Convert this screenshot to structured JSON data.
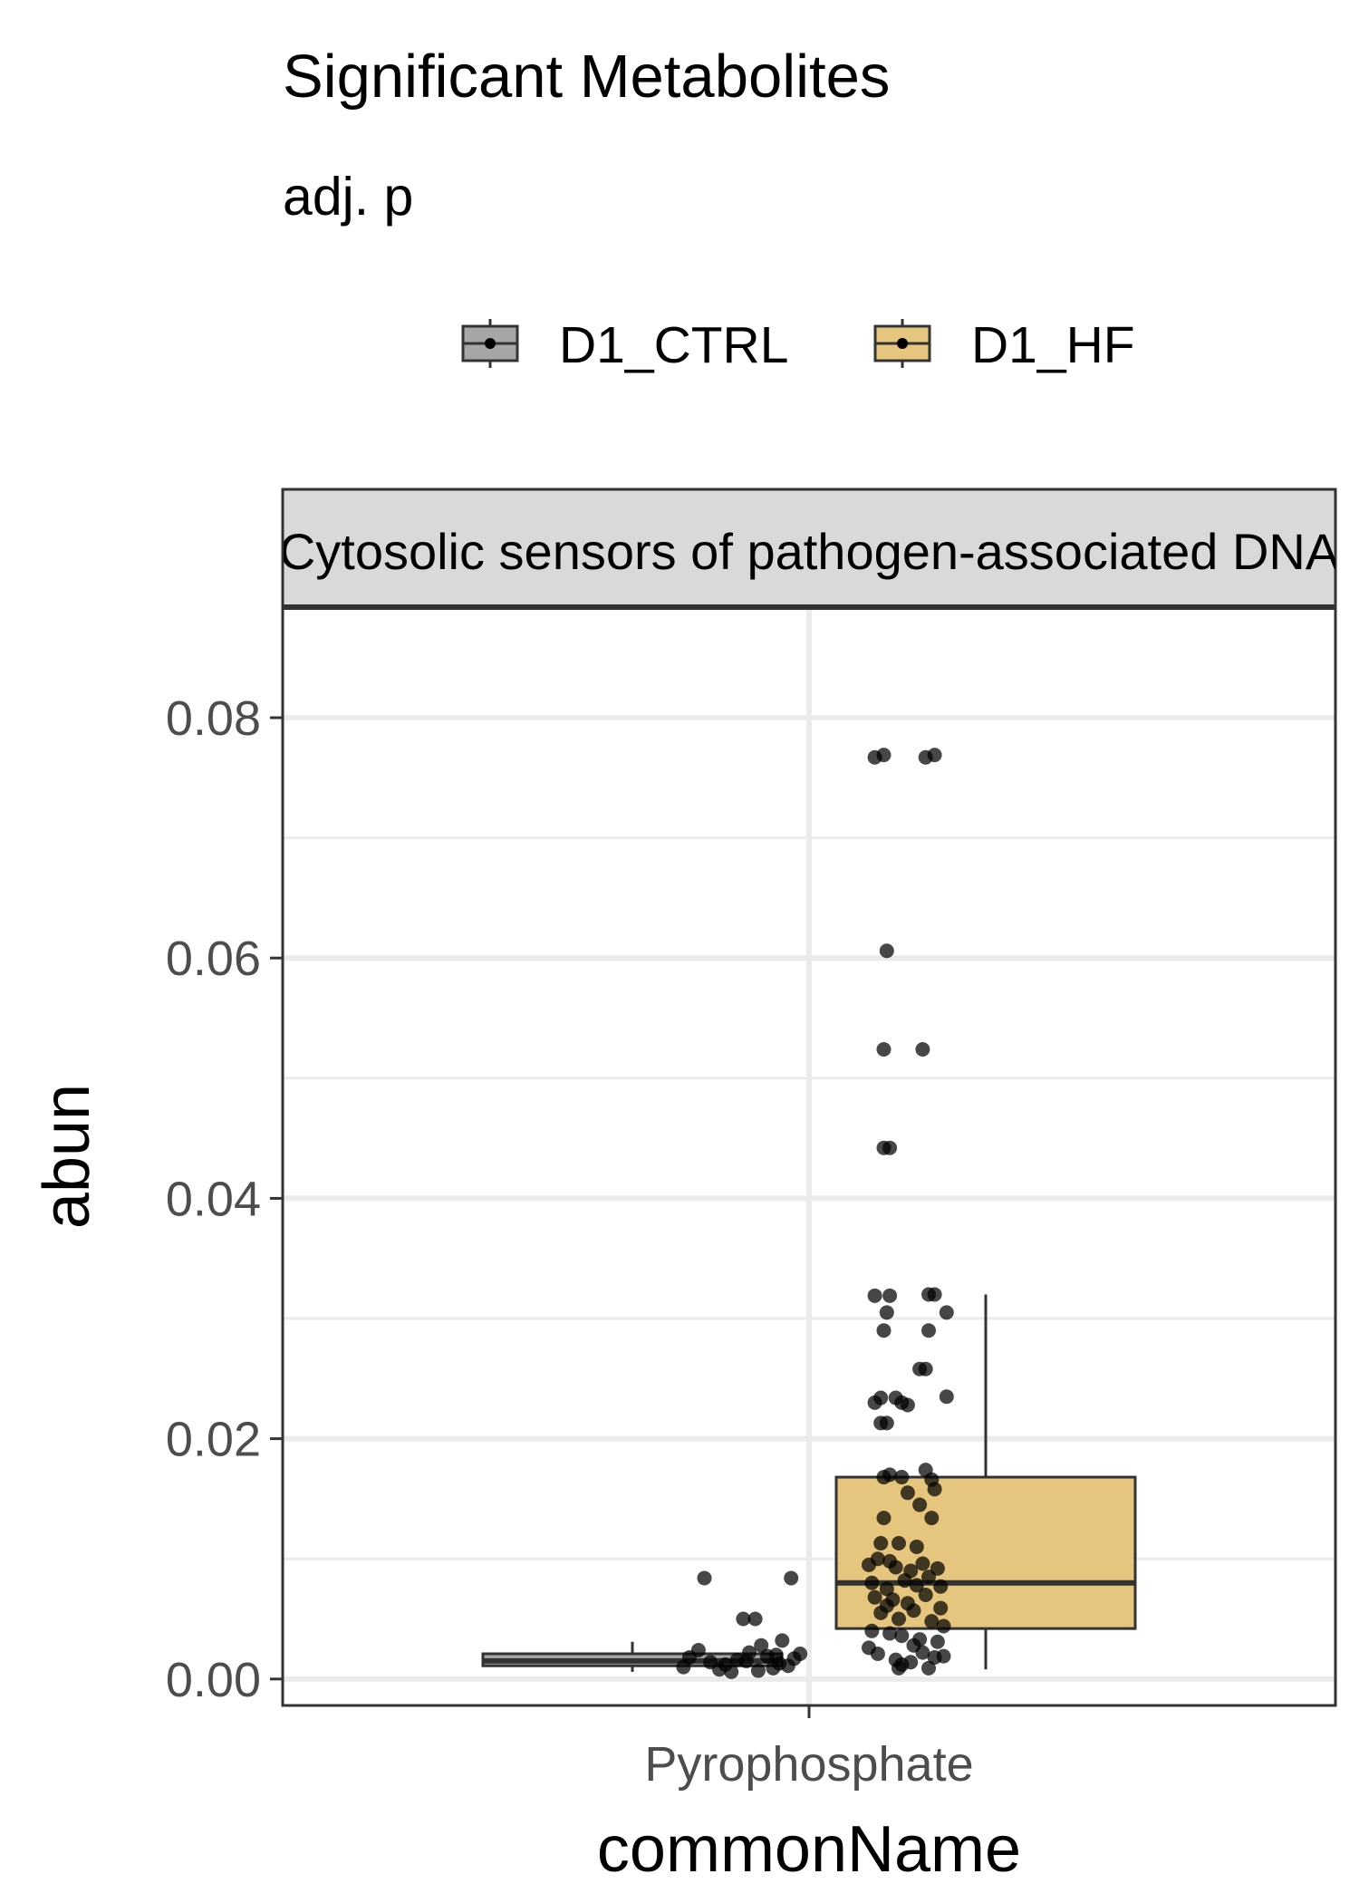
{
  "chart_data": {
    "type": "box",
    "title": "Significant Metabolites",
    "subtitle": "adj. p",
    "facet_label": "Cytosolic sensors of pathogen-associated DNA",
    "xlabel": "commonName",
    "ylabel": "abun",
    "categories": [
      "Pyrophosphate"
    ],
    "ylim": [
      -0.0022,
      0.0892
    ],
    "yticks": [
      0.0,
      0.02,
      0.04,
      0.06,
      0.08
    ],
    "ytick_labels": [
      "0.00",
      "0.02",
      "0.04",
      "0.06",
      "0.08"
    ],
    "legend": {
      "position": "top",
      "entries": [
        {
          "name": "D1_CTRL",
          "color": "#a6a6a6"
        },
        {
          "name": "D1_HF",
          "color": "#e6c57e"
        }
      ]
    },
    "series": [
      {
        "name": "D1_CTRL",
        "color": "#a6a6a6",
        "box": {
          "min": 0.0006,
          "q1": 0.0011,
          "median": 0.0015,
          "q3": 0.0021,
          "max": 0.0031
        },
        "points": [
          {
            "x": -0.35,
            "y": 0.0084
          },
          {
            "x": -0.06,
            "y": 0.0084
          },
          {
            "x": -0.22,
            "y": 0.005
          },
          {
            "x": -0.18,
            "y": 0.005
          },
          {
            "x": -0.16,
            "y": 0.0028
          },
          {
            "x": -0.09,
            "y": 0.0032
          },
          {
            "x": -0.4,
            "y": 0.0018
          },
          {
            "x": -0.33,
            "y": 0.0014
          },
          {
            "x": -0.28,
            "y": 0.0012
          },
          {
            "x": -0.24,
            "y": 0.0016
          },
          {
            "x": -0.2,
            "y": 0.0022
          },
          {
            "x": -0.14,
            "y": 0.0019
          },
          {
            "x": -0.1,
            "y": 0.0013
          },
          {
            "x": -0.05,
            "y": 0.0017
          },
          {
            "x": -0.42,
            "y": 0.001
          },
          {
            "x": -0.3,
            "y": 0.0008
          },
          {
            "x": -0.26,
            "y": 0.0006
          },
          {
            "x": -0.12,
            "y": 0.0009
          },
          {
            "x": -0.07,
            "y": 0.0011
          },
          {
            "x": -0.03,
            "y": 0.0021
          },
          {
            "x": -0.37,
            "y": 0.0024
          },
          {
            "x": -0.17,
            "y": 0.0007
          },
          {
            "x": -0.11,
            "y": 0.002
          },
          {
            "x": -0.21,
            "y": 0.0015
          }
        ]
      },
      {
        "name": "D1_HF",
        "color": "#e6c57e",
        "box": {
          "min": 0.0008,
          "q1": 0.0042,
          "median": 0.008,
          "q3": 0.0168,
          "max": 0.032
        },
        "points": [
          {
            "x": 0.22,
            "y": 0.0767
          },
          {
            "x": 0.25,
            "y": 0.0769
          },
          {
            "x": 0.39,
            "y": 0.0767
          },
          {
            "x": 0.42,
            "y": 0.0769
          },
          {
            "x": 0.26,
            "y": 0.0606
          },
          {
            "x": 0.25,
            "y": 0.0524
          },
          {
            "x": 0.38,
            "y": 0.0524
          },
          {
            "x": 0.25,
            "y": 0.0442
          },
          {
            "x": 0.27,
            "y": 0.0442
          },
          {
            "x": 0.22,
            "y": 0.0319
          },
          {
            "x": 0.27,
            "y": 0.0319
          },
          {
            "x": 0.4,
            "y": 0.032
          },
          {
            "x": 0.42,
            "y": 0.032
          },
          {
            "x": 0.26,
            "y": 0.0305
          },
          {
            "x": 0.46,
            "y": 0.0305
          },
          {
            "x": 0.25,
            "y": 0.029
          },
          {
            "x": 0.4,
            "y": 0.029
          },
          {
            "x": 0.37,
            "y": 0.0258
          },
          {
            "x": 0.39,
            "y": 0.0258
          },
          {
            "x": 0.22,
            "y": 0.023
          },
          {
            "x": 0.24,
            "y": 0.0234
          },
          {
            "x": 0.29,
            "y": 0.0234
          },
          {
            "x": 0.31,
            "y": 0.023
          },
          {
            "x": 0.33,
            "y": 0.0228
          },
          {
            "x": 0.46,
            "y": 0.0235
          },
          {
            "x": 0.24,
            "y": 0.0213
          },
          {
            "x": 0.26,
            "y": 0.0213
          },
          {
            "x": 0.25,
            "y": 0.0168
          },
          {
            "x": 0.27,
            "y": 0.017
          },
          {
            "x": 0.31,
            "y": 0.0168
          },
          {
            "x": 0.39,
            "y": 0.0174
          },
          {
            "x": 0.41,
            "y": 0.0166
          },
          {
            "x": 0.33,
            "y": 0.0155
          },
          {
            "x": 0.37,
            "y": 0.0145
          },
          {
            "x": 0.42,
            "y": 0.0158
          },
          {
            "x": 0.25,
            "y": 0.0134
          },
          {
            "x": 0.41,
            "y": 0.0134
          },
          {
            "x": 0.24,
            "y": 0.0113
          },
          {
            "x": 0.3,
            "y": 0.0113
          },
          {
            "x": 0.36,
            "y": 0.011
          },
          {
            "x": 0.2,
            "y": 0.0095
          },
          {
            "x": 0.23,
            "y": 0.01
          },
          {
            "x": 0.27,
            "y": 0.0098
          },
          {
            "x": 0.29,
            "y": 0.0093
          },
          {
            "x": 0.34,
            "y": 0.009
          },
          {
            "x": 0.38,
            "y": 0.0096
          },
          {
            "x": 0.43,
            "y": 0.0092
          },
          {
            "x": 0.21,
            "y": 0.008
          },
          {
            "x": 0.26,
            "y": 0.0075
          },
          {
            "x": 0.32,
            "y": 0.0082
          },
          {
            "x": 0.36,
            "y": 0.0078
          },
          {
            "x": 0.4,
            "y": 0.0085
          },
          {
            "x": 0.44,
            "y": 0.0077
          },
          {
            "x": 0.22,
            "y": 0.0068
          },
          {
            "x": 0.28,
            "y": 0.0066
          },
          {
            "x": 0.33,
            "y": 0.0063
          },
          {
            "x": 0.39,
            "y": 0.007
          },
          {
            "x": 0.24,
            "y": 0.0055
          },
          {
            "x": 0.3,
            "y": 0.005
          },
          {
            "x": 0.35,
            "y": 0.0057
          },
          {
            "x": 0.41,
            "y": 0.0048
          },
          {
            "x": 0.45,
            "y": 0.0044
          },
          {
            "x": 0.21,
            "y": 0.004
          },
          {
            "x": 0.27,
            "y": 0.0038
          },
          {
            "x": 0.31,
            "y": 0.0036
          },
          {
            "x": 0.37,
            "y": 0.0033
          },
          {
            "x": 0.43,
            "y": 0.0031
          },
          {
            "x": 0.2,
            "y": 0.0026
          },
          {
            "x": 0.23,
            "y": 0.0021
          },
          {
            "x": 0.29,
            "y": 0.0016
          },
          {
            "x": 0.31,
            "y": 0.0012
          },
          {
            "x": 0.34,
            "y": 0.0014
          },
          {
            "x": 0.38,
            "y": 0.0022
          },
          {
            "x": 0.42,
            "y": 0.0018
          },
          {
            "x": 0.45,
            "y": 0.0019
          },
          {
            "x": 0.3,
            "y": 0.0009
          },
          {
            "x": 0.4,
            "y": 0.0009
          },
          {
            "x": 0.35,
            "y": 0.0028
          },
          {
            "x": 0.26,
            "y": 0.0061
          },
          {
            "x": 0.44,
            "y": 0.0059
          }
        ]
      }
    ]
  }
}
